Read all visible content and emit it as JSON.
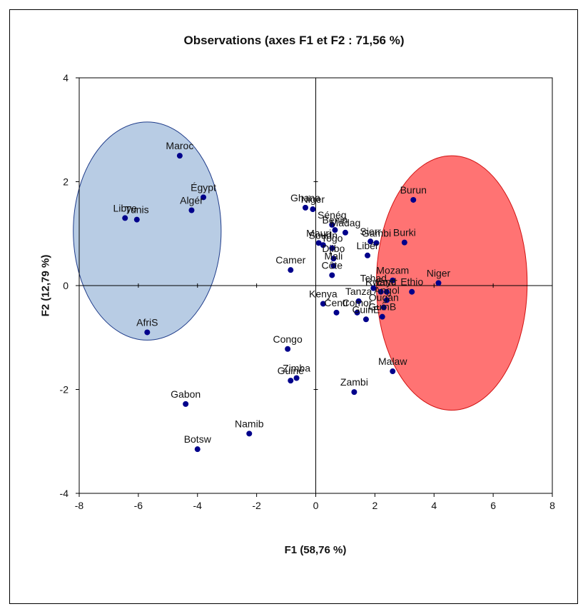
{
  "chart_data": {
    "type": "scatter",
    "title": "Observations (axes F1 et F2 : 71,56 %)",
    "xlabel": "F1 (58,76 %)",
    "ylabel": "F2 (12,79 %)",
    "xlim": [
      -8,
      8
    ],
    "ylim": [
      -4,
      4
    ],
    "xticks": [
      "-8",
      "-6",
      "-4",
      "-2",
      "0",
      "2",
      "4",
      "6",
      "8"
    ],
    "yticks": [
      "4",
      "2",
      "0",
      "-2",
      "-4"
    ],
    "grid": false,
    "colors": {
      "points": "#00008b",
      "labels": "#111111",
      "left_ellipse_fill": "#b8cce4",
      "left_ellipse_stroke": "#1f3c8a",
      "right_ellipse_fill": "#ff7373",
      "right_ellipse_stroke": "#d11111"
    },
    "ellipses": [
      {
        "name": "left-cluster",
        "cx": -5.7,
        "cy": 1.05,
        "rx": 2.5,
        "ry": 2.1
      },
      {
        "name": "right-cluster",
        "cx": 4.6,
        "cy": 0.05,
        "rx": 2.55,
        "ry": 2.45
      }
    ],
    "points": [
      {
        "label": "Maroc",
        "x": -4.6,
        "y": 2.5
      },
      {
        "label": "Égypt",
        "x": -3.8,
        "y": 1.7
      },
      {
        "label": "Algér",
        "x": -4.2,
        "y": 1.45
      },
      {
        "label": "Libye",
        "x": -6.45,
        "y": 1.3
      },
      {
        "label": "Tunis",
        "x": -6.05,
        "y": 1.27
      },
      {
        "label": "AfriS",
        "x": -5.7,
        "y": -0.9
      },
      {
        "label": "Ghana",
        "x": -0.35,
        "y": 1.5
      },
      {
        "label": "Niger",
        "x": -0.1,
        "y": 1.47
      },
      {
        "label": "Sénég",
        "x": 0.55,
        "y": 1.17
      },
      {
        "label": "Benin",
        "x": 0.65,
        "y": 1.07
      },
      {
        "label": "Mauri",
        "x": 0.1,
        "y": 0.82
      },
      {
        "label": "Soudn",
        "x": 0.25,
        "y": 0.78
      },
      {
        "label": "Madag",
        "x": 1.0,
        "y": 1.02
      },
      {
        "label": "Gambi",
        "x": 2.05,
        "y": 0.82
      },
      {
        "label": "Sierr",
        "x": 1.85,
        "y": 0.85
      },
      {
        "label": "Togo",
        "x": 0.55,
        "y": 0.72
      },
      {
        "label": "Djibo",
        "x": 0.6,
        "y": 0.52
      },
      {
        "label": "Mali",
        "x": 0.6,
        "y": 0.38
      },
      {
        "label": "Côte",
        "x": 0.55,
        "y": 0.2
      },
      {
        "label": "Libér",
        "x": 1.75,
        "y": 0.58
      },
      {
        "label": "Camer",
        "x": -0.85,
        "y": 0.3
      },
      {
        "label": "Burun",
        "x": 3.3,
        "y": 1.65
      },
      {
        "label": "Burki",
        "x": 3.0,
        "y": 0.83
      },
      {
        "label": "Mozam",
        "x": 2.6,
        "y": 0.1
      },
      {
        "label": "Niger",
        "x": 4.15,
        "y": 0.05
      },
      {
        "label": "Tchad",
        "x": 1.95,
        "y": -0.05
      },
      {
        "label": "Rwand",
        "x": 2.2,
        "y": -0.12
      },
      {
        "label": "Erytr",
        "x": 2.4,
        "y": -0.12
      },
      {
        "label": "Ethio",
        "x": 3.25,
        "y": -0.12
      },
      {
        "label": "Angol",
        "x": 2.4,
        "y": -0.28
      },
      {
        "label": "Ougan",
        "x": 2.3,
        "y": -0.42
      },
      {
        "label": "Kenya",
        "x": 0.25,
        "y": -0.35
      },
      {
        "label": "Tanza",
        "x": 1.45,
        "y": -0.3
      },
      {
        "label": "Centr",
        "x": 0.7,
        "y": -0.52
      },
      {
        "label": "Comor",
        "x": 1.4,
        "y": -0.52
      },
      {
        "label": "GuinE",
        "x": 1.7,
        "y": -0.65
      },
      {
        "label": "GuinB",
        "x": 2.25,
        "y": -0.6
      },
      {
        "label": "Congo",
        "x": -0.95,
        "y": -1.22
      },
      {
        "label": "Zimba",
        "x": -0.65,
        "y": -1.78
      },
      {
        "label": "Guiné",
        "x": -0.85,
        "y": -1.83
      },
      {
        "label": "Malaw",
        "x": 2.6,
        "y": -1.65
      },
      {
        "label": "Zambi",
        "x": 1.3,
        "y": -2.05
      },
      {
        "label": "Gabon",
        "x": -4.4,
        "y": -2.28
      },
      {
        "label": "Namib",
        "x": -2.25,
        "y": -2.85
      },
      {
        "label": "Botsw",
        "x": -4.0,
        "y": -3.15
      }
    ]
  }
}
